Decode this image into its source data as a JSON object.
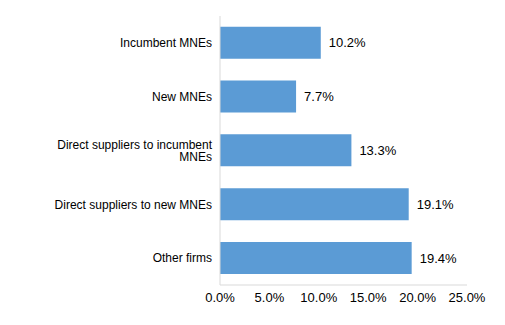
{
  "chart_data": {
    "type": "bar",
    "orientation": "horizontal",
    "categories": [
      "Incumbent MNEs",
      "New MNEs",
      "Direct suppliers to incumbent MNEs",
      "Direct suppliers to new MNEs",
      "Other firms"
    ],
    "values": [
      10.2,
      7.7,
      13.3,
      19.1,
      19.4
    ],
    "value_labels": [
      "10.2%",
      "7.7%",
      "13.3%",
      "19.1%",
      "19.4%"
    ],
    "data_labels": true,
    "color": "#5b9bd5",
    "xlim": [
      0,
      25
    ],
    "xticks": [
      {
        "value": 0,
        "label": "0.0%"
      },
      {
        "value": 5,
        "label": "5.0%"
      },
      {
        "value": 10,
        "label": "10.0%"
      },
      {
        "value": 15,
        "label": "15.0%"
      },
      {
        "value": 20,
        "label": "20.0%"
      },
      {
        "value": 25,
        "label": "25.0%"
      }
    ],
    "grid": false
  }
}
